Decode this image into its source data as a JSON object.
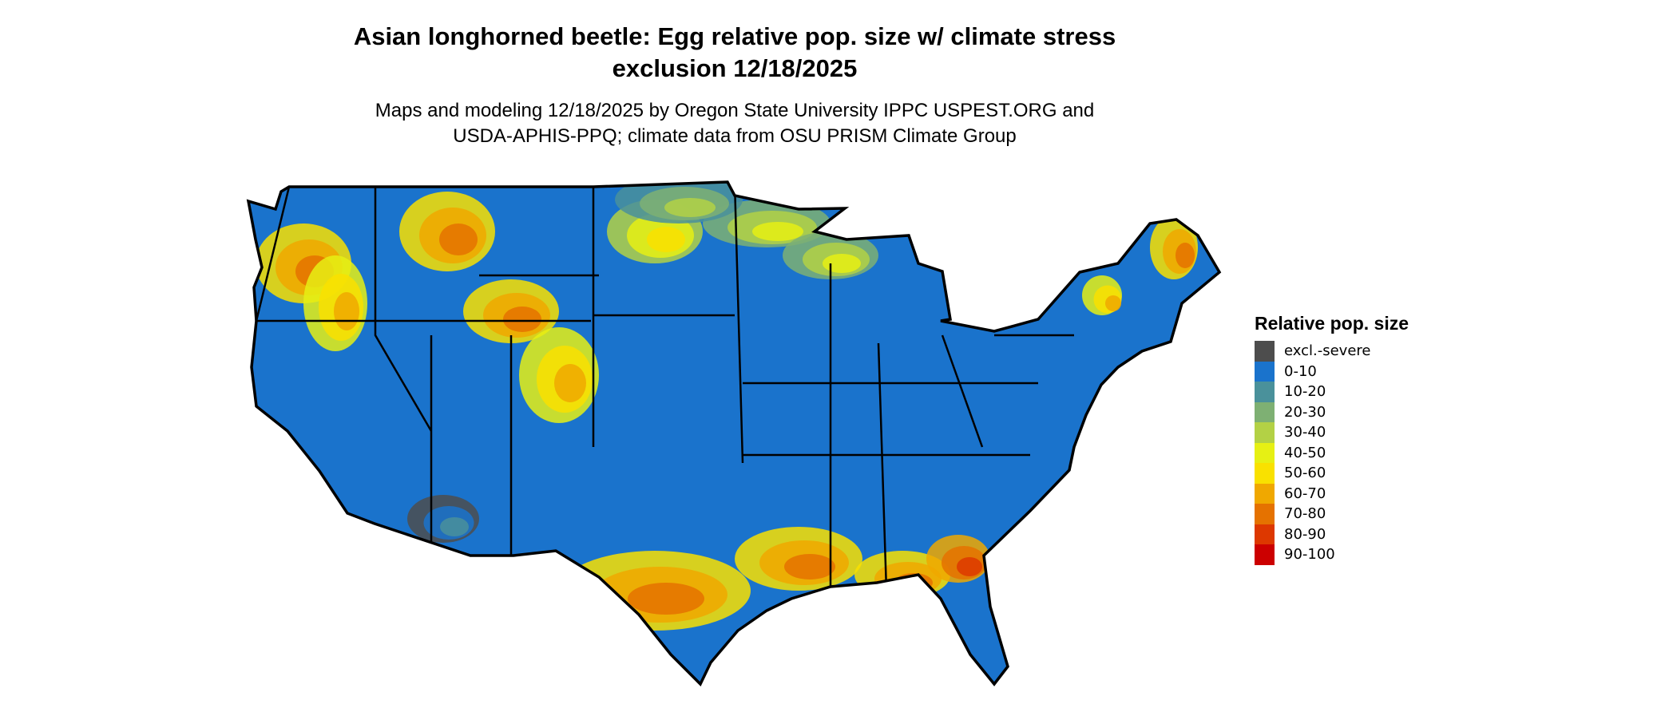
{
  "title_line1": "Asian longhorned beetle: Egg relative pop. size w/ climate stress",
  "title_line2": "exclusion 12/18/2025",
  "subtitle_line1": "Maps and modeling 12/18/2025 by Oregon State University IPPC USPEST.ORG and",
  "subtitle_line2": "USDA-APHIS-PPQ; climate data from OSU PRISM Climate Group",
  "map": {
    "region": "Contiguous United States",
    "base_color": "#1a73cc",
    "border_color": "#000000"
  },
  "legend": {
    "title": "Relative pop. size",
    "items": [
      {
        "label": "excl.-severe",
        "color": "#4d4d4d"
      },
      {
        "label": "0-10",
        "color": "#1a73cc"
      },
      {
        "label": "10-20",
        "color": "#4a919b"
      },
      {
        "label": "20-30",
        "color": "#7eb073"
      },
      {
        "label": "30-40",
        "color": "#b3d145"
      },
      {
        "label": "40-50",
        "color": "#e6f014"
      },
      {
        "label": "50-60",
        "color": "#f9e100"
      },
      {
        "label": "60-70",
        "color": "#f0a800"
      },
      {
        "label": "70-80",
        "color": "#e57200"
      },
      {
        "label": "80-90",
        "color": "#dd3800"
      },
      {
        "label": "90-100",
        "color": "#cc0000"
      }
    ]
  }
}
